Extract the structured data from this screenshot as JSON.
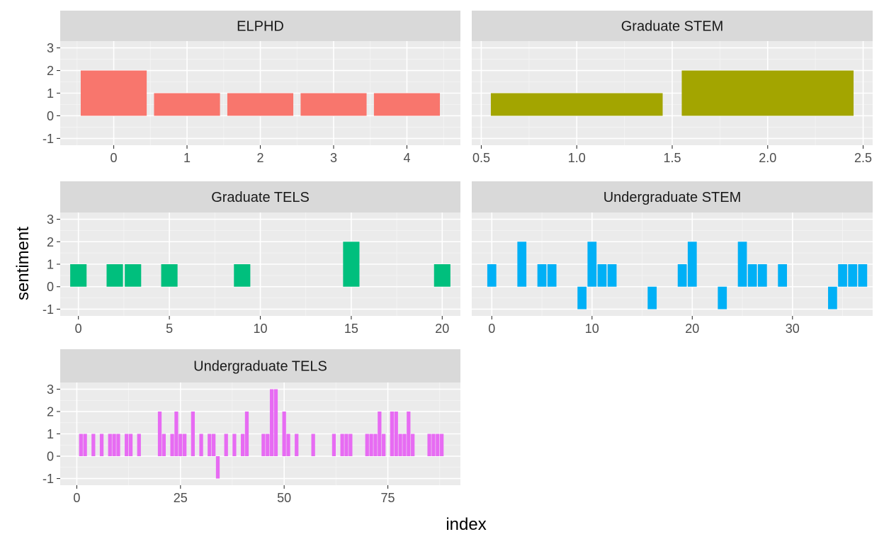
{
  "chart_data": {
    "type": "bar",
    "layout": "faceted",
    "xlabel": "index",
    "ylabel": "sentiment",
    "ylim": [
      -1.3,
      3.3
    ],
    "yticks": [
      -1,
      0,
      1,
      2,
      3
    ],
    "grid": true,
    "legend": "none",
    "panels": [
      {
        "title": "ELPHD",
        "color": "#F8766D",
        "bar_width": 0.9,
        "xlim": [
          -0.73,
          4.73
        ],
        "xticks": [
          0,
          1,
          2,
          3,
          4
        ],
        "xtick_labels": [
          "0",
          "1",
          "2",
          "3",
          "4"
        ],
        "points": [
          [
            0,
            2
          ],
          [
            1,
            1
          ],
          [
            2,
            1
          ],
          [
            3,
            1
          ],
          [
            4,
            1
          ]
        ]
      },
      {
        "title": "Graduate STEM",
        "color": "#A3A500",
        "bar_width": 0.9,
        "xlim": [
          0.45,
          2.55
        ],
        "xticks": [
          0.5,
          1.0,
          1.5,
          2.0,
          2.5
        ],
        "xtick_labels": [
          "0.5",
          "1.0",
          "1.5",
          "2.0",
          "2.5"
        ],
        "points": [
          [
            1,
            1
          ],
          [
            2,
            2
          ]
        ]
      },
      {
        "title": "Graduate TELS",
        "color": "#00BF7D",
        "bar_width": 0.9,
        "xlim": [
          -1.0,
          21.0
        ],
        "xticks": [
          0,
          5,
          10,
          15,
          20
        ],
        "xtick_labels": [
          "0",
          "5",
          "10",
          "15",
          "20"
        ],
        "points": [
          [
            0,
            1
          ],
          [
            2,
            1
          ],
          [
            3,
            1
          ],
          [
            5,
            1
          ],
          [
            9,
            1
          ],
          [
            15,
            2
          ],
          [
            20,
            1
          ]
        ]
      },
      {
        "title": "Undergraduate STEM",
        "color": "#00B0F6",
        "bar_width": 0.9,
        "xlim": [
          -2.0,
          38.0
        ],
        "xticks": [
          0,
          10,
          20,
          30
        ],
        "xtick_labels": [
          "0",
          "10",
          "20",
          "30"
        ],
        "points": [
          [
            0,
            1
          ],
          [
            3,
            2
          ],
          [
            5,
            1
          ],
          [
            6,
            1
          ],
          [
            9,
            -1
          ],
          [
            10,
            2
          ],
          [
            11,
            1
          ],
          [
            12,
            1
          ],
          [
            16,
            -1
          ],
          [
            19,
            1
          ],
          [
            20,
            2
          ],
          [
            23,
            -1
          ],
          [
            25,
            2
          ],
          [
            26,
            1
          ],
          [
            27,
            1
          ],
          [
            29,
            1
          ],
          [
            34,
            -1
          ],
          [
            35,
            1
          ],
          [
            36,
            1
          ],
          [
            37,
            1
          ]
        ]
      },
      {
        "title": "Undergraduate TELS",
        "color": "#E76BF3",
        "bar_width": 0.9,
        "xlim": [
          -4.0,
          92.5
        ],
        "xticks": [
          0,
          25,
          50,
          75
        ],
        "xtick_labels": [
          "0",
          "25",
          "50",
          "75"
        ],
        "points": [
          [
            1,
            1
          ],
          [
            2,
            1
          ],
          [
            4,
            1
          ],
          [
            6,
            1
          ],
          [
            8,
            1
          ],
          [
            9,
            1
          ],
          [
            10,
            1
          ],
          [
            12,
            1
          ],
          [
            13,
            1
          ],
          [
            15,
            1
          ],
          [
            20,
            2
          ],
          [
            21,
            1
          ],
          [
            23,
            1
          ],
          [
            24,
            2
          ],
          [
            25,
            1
          ],
          [
            26,
            1
          ],
          [
            28,
            2
          ],
          [
            30,
            1
          ],
          [
            32,
            1
          ],
          [
            33,
            1
          ],
          [
            34,
            -1
          ],
          [
            36,
            1
          ],
          [
            38,
            1
          ],
          [
            40,
            1
          ],
          [
            41,
            2
          ],
          [
            45,
            1
          ],
          [
            46,
            1
          ],
          [
            47,
            3
          ],
          [
            48,
            3
          ],
          [
            50,
            2
          ],
          [
            51,
            1
          ],
          [
            53,
            1
          ],
          [
            57,
            1
          ],
          [
            62,
            1
          ],
          [
            64,
            1
          ],
          [
            65,
            1
          ],
          [
            66,
            1
          ],
          [
            70,
            1
          ],
          [
            71,
            1
          ],
          [
            72,
            1
          ],
          [
            73,
            2
          ],
          [
            74,
            1
          ],
          [
            76,
            2
          ],
          [
            77,
            2
          ],
          [
            78,
            1
          ],
          [
            79,
            1
          ],
          [
            80,
            2
          ],
          [
            81,
            1
          ],
          [
            85,
            1
          ],
          [
            86,
            1
          ],
          [
            87,
            1
          ],
          [
            88,
            1
          ]
        ]
      }
    ]
  }
}
